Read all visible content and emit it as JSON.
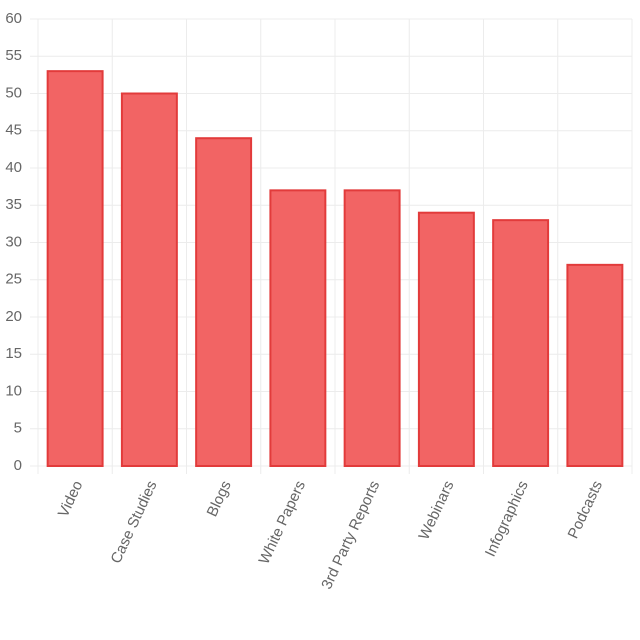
{
  "chart_data": {
    "type": "bar",
    "categories": [
      "Video",
      "Case Studies",
      "Blogs",
      "White Papers",
      "3rd Party Reports",
      "Webinars",
      "Infographics",
      "Podcasts"
    ],
    "values": [
      53,
      50,
      44,
      37,
      37,
      34,
      33,
      27
    ],
    "color": "#f26464",
    "border_color": "#e23b3b",
    "ylim": [
      0,
      60
    ],
    "yticks": [
      0,
      5,
      10,
      15,
      20,
      25,
      30,
      35,
      40,
      45,
      50,
      55,
      60
    ],
    "grid": true
  }
}
